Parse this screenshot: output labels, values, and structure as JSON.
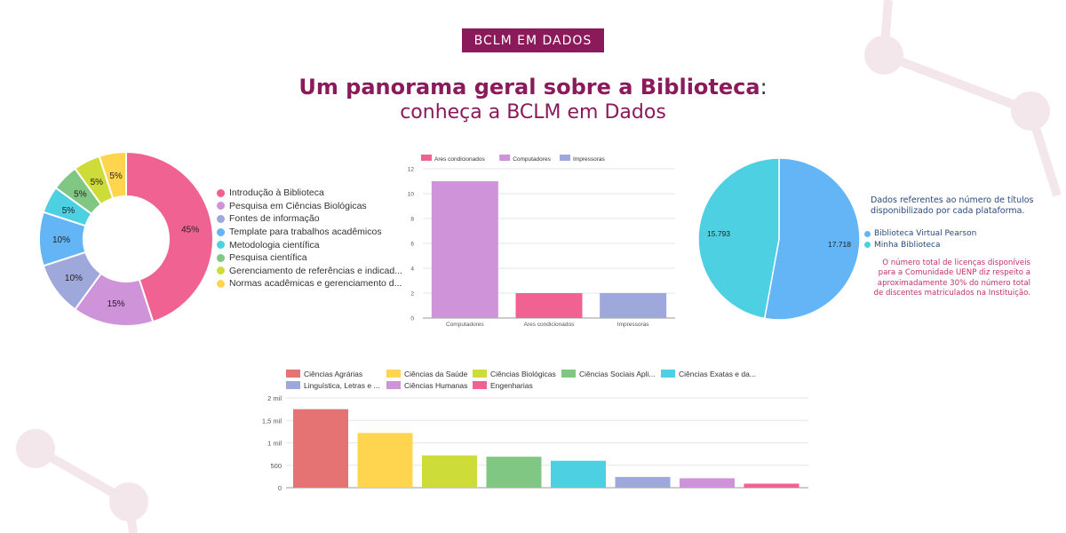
{
  "header": {
    "badge": "BCLM EM DADOS",
    "title_bold": "Um panorama geral sobre a Biblioteca",
    "title_colon": ":",
    "subtitle": "conheça a BCLM em Dados"
  },
  "colors": {
    "brand": "#8a1a5a",
    "decor": "#f3e7ec"
  },
  "chart_data": [
    {
      "type": "pie",
      "variant": "donut",
      "categories": [
        "Introdução à Biblioteca",
        "Pesquisa em Ciências Biológicas",
        "Fontes de informação",
        "Template para trabalhos acadêmicos",
        "Metodologia científica",
        "Pesquisa científica",
        "Gerenciamento de referências e indicad...",
        "Normas acadêmicas e gerenciamento d..."
      ],
      "values": [
        45,
        15,
        10,
        10,
        5,
        5,
        5,
        5
      ],
      "labels": [
        "45%",
        "15%",
        "10%",
        "10%",
        "5%",
        "5%",
        "5%",
        "5%"
      ],
      "colors": [
        "#f06292",
        "#ce93d8",
        "#9fa8da",
        "#64b5f6",
        "#4dd0e1",
        "#81c784",
        "#cddc39",
        "#ffd54f"
      ],
      "legend": "right"
    },
    {
      "type": "bar",
      "categories": [
        "Computadores",
        "Ares condicionados",
        "Impressoras"
      ],
      "values": [
        11,
        2,
        2
      ],
      "bar_colors": [
        "#ce93d8",
        "#f06292",
        "#9fa8da"
      ],
      "legend_items": [
        {
          "name": "Ares condicionados",
          "color": "#f06292"
        },
        {
          "name": "Computadores",
          "color": "#ce93d8"
        },
        {
          "name": "Impressoras",
          "color": "#9fa8da"
        }
      ],
      "yticks": [
        "0",
        "2",
        "4",
        "6",
        "8",
        "10",
        "12"
      ],
      "ylim": [
        0,
        12
      ],
      "grid": true,
      "legend": "top"
    },
    {
      "type": "pie",
      "categories": [
        "Biblioteca Virtual Pearson",
        "Minha Biblioteca"
      ],
      "values": [
        17718,
        15793
      ],
      "labels": [
        "17.718",
        "15.793"
      ],
      "colors": [
        "#64b5f6",
        "#4dd0e1"
      ],
      "note": "Dados referentes ao número de títulos disponibilizado por cada plataforma.",
      "footnote": "O número total de licenças disponíveis para a Comunidade UENP diz respeito a aproximadamente 30% do número total de discentes matriculados na Instituição.",
      "legend": "right"
    },
    {
      "type": "bar",
      "categories": [
        "Ciências Agrárias",
        "Ciências da Saúde",
        "Ciências Biológicas",
        "Ciências Sociais Apli...",
        "Ciências Exatas e da...",
        "Linguística, Letras e ...",
        "Ciências Humanas",
        "Engenharias"
      ],
      "values": [
        1750,
        1220,
        720,
        690,
        600,
        240,
        210,
        90
      ],
      "bar_colors": [
        "#e57373",
        "#ffd54f",
        "#cddc39",
        "#81c784",
        "#4dd0e1",
        "#9fa8da",
        "#ce93d8",
        "#f06292"
      ],
      "yticks": [
        "0",
        "500",
        "1 mil",
        "1,5 mil",
        "2 mil"
      ],
      "ylim": [
        0,
        2000
      ],
      "grid": true,
      "legend": "top"
    }
  ]
}
